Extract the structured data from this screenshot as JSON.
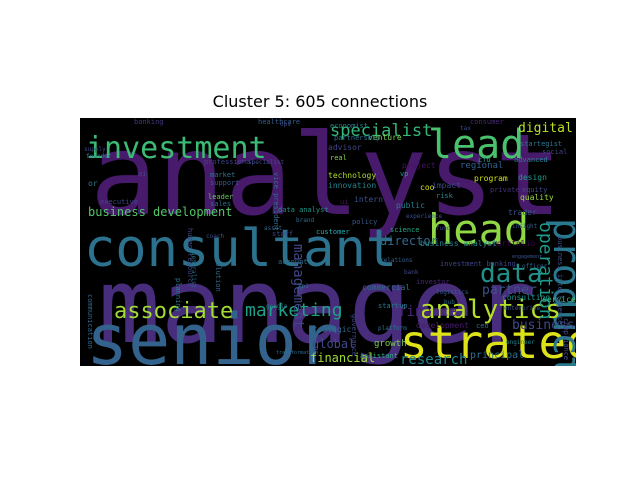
{
  "title": "Cluster 5: 605 connections",
  "chart_data": {
    "type": "wordcloud",
    "title": "Cluster 5: 605 connections",
    "background": "#000000",
    "colormap": "viridis",
    "words": [
      {
        "text": "analyst",
        "color": "#481a6c"
      },
      {
        "text": "manager",
        "color": "#472d7b"
      },
      {
        "text": "consultant",
        "color": "#2c728e"
      },
      {
        "text": "senior",
        "color": "#33638d"
      },
      {
        "text": "investment",
        "color": "#3cbb75"
      },
      {
        "text": "lead",
        "color": "#4ac16d"
      },
      {
        "text": "head",
        "color": "#8fd744"
      },
      {
        "text": "strategy",
        "color": "#dde318"
      },
      {
        "text": "product",
        "color": "#2a788e"
      },
      {
        "text": "associate",
        "color": "#a2da37"
      },
      {
        "text": "analytics",
        "color": "#b5de2b"
      },
      {
        "text": "data",
        "color": "#21918c"
      },
      {
        "text": "specialist",
        "color": "#35b779"
      },
      {
        "text": "marketing",
        "color": "#1fa088"
      },
      {
        "text": "operation",
        "color": "#1f9a8a"
      },
      {
        "text": "business development",
        "color": "#52c569"
      },
      {
        "text": "digital",
        "color": "#b8de29"
      },
      {
        "text": "finance",
        "color": "#482475"
      },
      {
        "text": "research",
        "color": "#26828e"
      },
      {
        "text": "business",
        "color": "#3e4a89"
      },
      {
        "text": "partner",
        "color": "#3b528b"
      },
      {
        "text": "director",
        "color": "#31688e"
      },
      {
        "text": "management",
        "color": "#404688"
      },
      {
        "text": "financial",
        "color": "#a0da39"
      },
      {
        "text": "global",
        "color": "#3f4889"
      },
      {
        "text": "principal",
        "color": "#2d708e"
      },
      {
        "text": "growth",
        "color": "#7ad151"
      },
      {
        "text": "regional",
        "color": "#34608d"
      },
      {
        "text": "innovation",
        "color": "#25848e"
      },
      {
        "text": "technology",
        "color": "#b0dd2f"
      },
      {
        "text": "advisor",
        "color": "#414487"
      },
      {
        "text": "project",
        "color": "#471365"
      },
      {
        "text": "design",
        "color": "#1e9b8a"
      },
      {
        "text": "quality",
        "color": "#9bd93c"
      },
      {
        "text": "equity",
        "color": "#3e4c8a"
      },
      {
        "text": "private",
        "color": "#46327e"
      },
      {
        "text": "program",
        "color": "#d2e21b"
      },
      {
        "text": "services",
        "color": "#43bf71"
      },
      {
        "text": "intern",
        "color": "#3b528b"
      },
      {
        "text": "commercial",
        "color": "#2e6e8e"
      },
      {
        "text": "consulting",
        "color": "#1f958b"
      },
      {
        "text": "portfolio",
        "color": "#440154"
      },
      {
        "text": "public",
        "color": "#287c8e"
      },
      {
        "text": "real",
        "color": "#7fd34e"
      },
      {
        "text": "policy",
        "color": "#38588c"
      },
      {
        "text": "customer",
        "color": "#25abb2"
      },
      {
        "text": "market",
        "color": "#2b758e"
      },
      {
        "text": "support",
        "color": "#39568c"
      },
      {
        "text": "leader",
        "color": "#67cc5c"
      },
      {
        "text": "sales",
        "color": "#2c728e"
      },
      {
        "text": "executive",
        "color": "#404588"
      },
      {
        "text": "strategic",
        "color": "#2f6b8e"
      },
      {
        "text": "data analyst",
        "color": "#1f968b"
      },
      {
        "text": "business analyst",
        "color": "#24868e"
      },
      {
        "text": "governance",
        "color": "#3f4788"
      },
      {
        "text": "investor",
        "color": "#482878"
      },
      {
        "text": "development",
        "color": "#481d6f"
      },
      {
        "text": "assistant",
        "color": "#29af7f"
      },
      {
        "text": "social",
        "color": "#3f4889"
      },
      {
        "text": "planning",
        "color": "#2a788e"
      },
      {
        "text": "trader",
        "color": "#3a538b"
      },
      {
        "text": "economist",
        "color": "#26818e"
      },
      {
        "text": "venture",
        "color": "#7ad151"
      },
      {
        "text": "impact",
        "color": "#3e4a89"
      },
      {
        "text": "account",
        "color": "#2d718e"
      },
      {
        "text": "science",
        "color": "#22a785"
      },
      {
        "text": "business intelligence",
        "color": "#3b518b"
      },
      {
        "text": "human resource",
        "color": "#3f4788"
      },
      {
        "text": "healthcare",
        "color": "#355e8d"
      },
      {
        "text": "communication",
        "color": "#31688e"
      },
      {
        "text": "compliance",
        "color": "#3c4f8a"
      },
      {
        "text": "vice president",
        "color": "#2e6e8e"
      },
      {
        "text": "professional",
        "color": "#404588"
      },
      {
        "text": "banking",
        "color": "#453781"
      },
      {
        "text": "investment banking",
        "color": "#414487"
      },
      {
        "text": "partnership",
        "color": "#2c718e"
      },
      {
        "text": "consumer",
        "color": "#482979"
      },
      {
        "text": "advanced",
        "color": "#25848e"
      },
      {
        "text": "staff",
        "color": "#3e4989"
      },
      {
        "text": "startup",
        "color": "#287d8e"
      },
      {
        "text": "startegist",
        "color": "#2a768e"
      },
      {
        "text": "risk",
        "color": "#24868e"
      },
      {
        "text": "coo",
        "color": "#d8e219"
      },
      {
        "text": "ai",
        "color": "#3f4788"
      },
      {
        "text": "kpi",
        "color": "#2c718e"
      },
      {
        "text": "ui",
        "color": "#471063"
      },
      {
        "text": "cfo",
        "color": "#22a884"
      },
      {
        "text": "or",
        "color": "#2a788e"
      },
      {
        "text": "ceo",
        "color": "#2c738e"
      },
      {
        "text": "vp",
        "color": "#1f9f88"
      },
      {
        "text": "coach",
        "color": "#3b528b"
      },
      {
        "text": "generalist",
        "color": "#2e6f8e"
      },
      {
        "text": "founder",
        "color": "#287c8e"
      },
      {
        "text": "supply",
        "color": "#3f4788"
      },
      {
        "text": "brand",
        "color": "#2d708e"
      },
      {
        "text": "platform",
        "color": "#2b748e"
      },
      {
        "text": "insight",
        "color": "#355f8d"
      },
      {
        "text": "engineer",
        "color": "#26828e"
      },
      {
        "text": "tax",
        "color": "#3e4a89"
      },
      {
        "text": "officer",
        "color": "#33638d"
      },
      {
        "text": "solution",
        "color": "#31688e"
      },
      {
        "text": "experience",
        "color": "#3c508b"
      },
      {
        "text": "specialist",
        "color": "#3e4989"
      },
      {
        "text": "hub",
        "color": "#2e6e8e"
      },
      {
        "text": "fund",
        "color": "#3e4989"
      },
      {
        "text": "engagement",
        "color": "#3b528b"
      },
      {
        "text": "google",
        "color": "#2a778e"
      },
      {
        "text": "bank",
        "color": "#3f4889"
      },
      {
        "text": "logistics",
        "color": "#365c8d"
      },
      {
        "text": "ops",
        "color": "#3e4a89"
      },
      {
        "text": "asset",
        "color": "#34618d"
      },
      {
        "text": "transformation",
        "color": "#2e6d8e"
      },
      {
        "text": "enterprise",
        "color": "#3a548c"
      },
      {
        "text": "relations",
        "color": "#33628d"
      }
    ]
  }
}
